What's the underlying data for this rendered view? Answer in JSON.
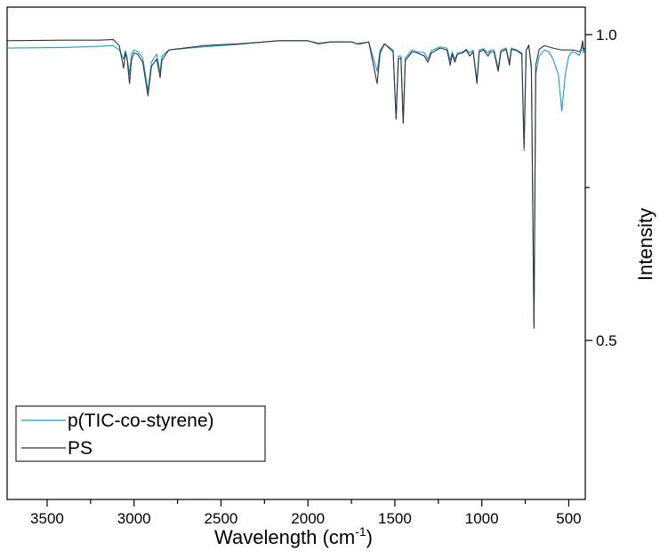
{
  "chart_data": {
    "type": "line",
    "xlabel": {
      "prefix": "Wavelength (cm",
      "sup": "-1",
      "suffix": ")"
    },
    "ylabel": "Intensity",
    "xlim": [
      3730,
      405
    ],
    "ylim": [
      0.24,
      1.045
    ],
    "x_ticks": [
      3500,
      3000,
      2500,
      2000,
      1500,
      1000,
      500
    ],
    "x_minor_ticks": [
      3250,
      2750,
      2250,
      1750,
      1250,
      750
    ],
    "y_ticks": [
      0.5,
      1.0
    ],
    "y_minor_ticks": [
      0.75
    ],
    "y_axis_side": "right",
    "legend_position": "bottom-left",
    "grid": false,
    "series": [
      {
        "name": "p(TIC-co-styrene)",
        "color": "#1a9bd7",
        "points": [
          [
            3730,
            0.978
          ],
          [
            3400,
            0.979
          ],
          [
            3200,
            0.981
          ],
          [
            3120,
            0.982
          ],
          [
            3085,
            0.975
          ],
          [
            3060,
            0.96
          ],
          [
            3050,
            0.974
          ],
          [
            3040,
            0.963
          ],
          [
            3026,
            0.935
          ],
          [
            3015,
            0.968
          ],
          [
            3001,
            0.975
          ],
          [
            2980,
            0.972
          ],
          [
            2950,
            0.962
          ],
          [
            2920,
            0.908
          ],
          [
            2900,
            0.955
          ],
          [
            2870,
            0.968
          ],
          [
            2850,
            0.938
          ],
          [
            2840,
            0.965
          ],
          [
            2800,
            0.975
          ],
          [
            2600,
            0.98
          ],
          [
            2400,
            0.984
          ],
          [
            2250,
            0.988
          ],
          [
            2170,
            0.99
          ],
          [
            2100,
            0.99
          ],
          [
            2000,
            0.99
          ],
          [
            1940,
            0.986
          ],
          [
            1870,
            0.988
          ],
          [
            1800,
            0.988
          ],
          [
            1745,
            0.988
          ],
          [
            1720,
            0.985
          ],
          [
            1700,
            0.986
          ],
          [
            1650,
            0.988
          ],
          [
            1602,
            0.94
          ],
          [
            1585,
            0.975
          ],
          [
            1560,
            0.985
          ],
          [
            1510,
            0.975
          ],
          [
            1493,
            0.862
          ],
          [
            1480,
            0.965
          ],
          [
            1465,
            0.965
          ],
          [
            1452,
            0.855
          ],
          [
            1440,
            0.962
          ],
          [
            1400,
            0.975
          ],
          [
            1370,
            0.972
          ],
          [
            1330,
            0.97
          ],
          [
            1310,
            0.96
          ],
          [
            1290,
            0.974
          ],
          [
            1240,
            0.98
          ],
          [
            1200,
            0.978
          ],
          [
            1182,
            0.958
          ],
          [
            1170,
            0.972
          ],
          [
            1155,
            0.96
          ],
          [
            1140,
            0.97
          ],
          [
            1110,
            0.972
          ],
          [
            1090,
            0.976
          ],
          [
            1070,
            0.97
          ],
          [
            1050,
            0.975
          ],
          [
            1028,
            0.925
          ],
          [
            1015,
            0.975
          ],
          [
            990,
            0.977
          ],
          [
            965,
            0.97
          ],
          [
            950,
            0.975
          ],
          [
            930,
            0.975
          ],
          [
            906,
            0.945
          ],
          [
            890,
            0.975
          ],
          [
            860,
            0.978
          ],
          [
            841,
            0.955
          ],
          [
            830,
            0.978
          ],
          [
            800,
            0.975
          ],
          [
            770,
            0.97
          ],
          [
            757,
            0.81
          ],
          [
            745,
            0.975
          ],
          [
            730,
            0.982
          ],
          [
            715,
            0.95
          ],
          [
            700,
            0.52
          ],
          [
            690,
            0.935
          ],
          [
            670,
            0.965
          ],
          [
            640,
            0.975
          ],
          [
            615,
            0.972
          ],
          [
            590,
            0.96
          ],
          [
            560,
            0.935
          ],
          [
            540,
            0.875
          ],
          [
            520,
            0.935
          ],
          [
            500,
            0.965
          ],
          [
            480,
            0.972
          ],
          [
            460,
            0.97
          ],
          [
            440,
            0.966
          ],
          [
            430,
            0.972
          ],
          [
            420,
            0.985
          ],
          [
            415,
            0.97
          ],
          [
            410,
            0.975
          ]
        ]
      },
      {
        "name": "PS",
        "color": "#333333",
        "points": [
          [
            3730,
            0.99
          ],
          [
            3400,
            0.991
          ],
          [
            3200,
            0.991
          ],
          [
            3120,
            0.992
          ],
          [
            3085,
            0.982
          ],
          [
            3060,
            0.945
          ],
          [
            3050,
            0.97
          ],
          [
            3040,
            0.96
          ],
          [
            3026,
            0.92
          ],
          [
            3015,
            0.958
          ],
          [
            3001,
            0.97
          ],
          [
            2980,
            0.968
          ],
          [
            2950,
            0.955
          ],
          [
            2920,
            0.9
          ],
          [
            2900,
            0.948
          ],
          [
            2870,
            0.96
          ],
          [
            2850,
            0.93
          ],
          [
            2840,
            0.958
          ],
          [
            2800,
            0.975
          ],
          [
            2600,
            0.982
          ],
          [
            2400,
            0.985
          ],
          [
            2250,
            0.988
          ],
          [
            2170,
            0.99
          ],
          [
            2100,
            0.99
          ],
          [
            2000,
            0.99
          ],
          [
            1940,
            0.985
          ],
          [
            1870,
            0.988
          ],
          [
            1800,
            0.988
          ],
          [
            1745,
            0.988
          ],
          [
            1720,
            0.985
          ],
          [
            1700,
            0.985
          ],
          [
            1650,
            0.988
          ],
          [
            1602,
            0.92
          ],
          [
            1585,
            0.97
          ],
          [
            1560,
            0.985
          ],
          [
            1510,
            0.972
          ],
          [
            1493,
            0.862
          ],
          [
            1480,
            0.96
          ],
          [
            1465,
            0.962
          ],
          [
            1452,
            0.855
          ],
          [
            1440,
            0.958
          ],
          [
            1400,
            0.972
          ],
          [
            1370,
            0.97
          ],
          [
            1330,
            0.965
          ],
          [
            1310,
            0.955
          ],
          [
            1290,
            0.97
          ],
          [
            1240,
            0.978
          ],
          [
            1200,
            0.975
          ],
          [
            1182,
            0.95
          ],
          [
            1170,
            0.968
          ],
          [
            1155,
            0.955
          ],
          [
            1140,
            0.968
          ],
          [
            1110,
            0.97
          ],
          [
            1090,
            0.975
          ],
          [
            1070,
            0.965
          ],
          [
            1050,
            0.972
          ],
          [
            1028,
            0.92
          ],
          [
            1015,
            0.972
          ],
          [
            990,
            0.975
          ],
          [
            965,
            0.965
          ],
          [
            950,
            0.972
          ],
          [
            930,
            0.972
          ],
          [
            906,
            0.94
          ],
          [
            890,
            0.972
          ],
          [
            860,
            0.976
          ],
          [
            841,
            0.95
          ],
          [
            830,
            0.976
          ],
          [
            800,
            0.974
          ],
          [
            770,
            0.968
          ],
          [
            757,
            0.815
          ],
          [
            745,
            0.974
          ],
          [
            730,
            0.983
          ],
          [
            715,
            0.945
          ],
          [
            700,
            0.52
          ],
          [
            690,
            0.95
          ],
          [
            670,
            0.976
          ],
          [
            640,
            0.982
          ],
          [
            615,
            0.98
          ],
          [
            590,
            0.978
          ],
          [
            560,
            0.976
          ],
          [
            540,
            0.975
          ],
          [
            520,
            0.975
          ],
          [
            500,
            0.975
          ],
          [
            480,
            0.975
          ],
          [
            460,
            0.974
          ],
          [
            440,
            0.972
          ],
          [
            430,
            0.975
          ],
          [
            420,
            0.99
          ],
          [
            415,
            0.975
          ],
          [
            410,
            0.978
          ]
        ]
      }
    ]
  }
}
